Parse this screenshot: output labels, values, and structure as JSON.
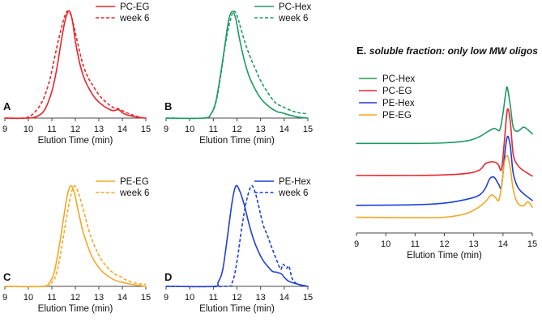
{
  "chart_data": [
    {
      "type": "line",
      "panel": "A",
      "xlabel": "Elution Time (min)",
      "ylabel": "",
      "xlim": [
        9,
        15
      ],
      "ylim": [
        0,
        1
      ],
      "xticks": [
        9,
        10,
        11,
        12,
        13,
        14,
        15
      ],
      "legend_position": "top-right",
      "grid": false,
      "series": [
        {
          "name": "PC-EG",
          "color": "#e8262b",
          "dash": "solid",
          "x": [
            9.0,
            10.0,
            10.4,
            10.7,
            11.0,
            11.2,
            11.4,
            11.55,
            11.7,
            11.8,
            11.9,
            12.0,
            12.2,
            12.4,
            12.6,
            12.8,
            13.0,
            13.3,
            13.6,
            13.8,
            13.9,
            14.0,
            14.2,
            14.6,
            15.0
          ],
          "y": [
            0.0,
            0.0,
            0.02,
            0.08,
            0.25,
            0.45,
            0.72,
            0.9,
            1.0,
            0.98,
            0.88,
            0.72,
            0.5,
            0.36,
            0.27,
            0.2,
            0.15,
            0.1,
            0.07,
            0.08,
            0.07,
            0.05,
            0.03,
            0.01,
            0.0
          ]
        },
        {
          "name": "week 6",
          "color": "#e8262b",
          "dash": "dashed",
          "x": [
            9.0,
            9.8,
            10.2,
            10.6,
            10.9,
            11.1,
            11.3,
            11.5,
            11.65,
            11.8,
            11.95,
            12.1,
            12.3,
            12.5,
            12.7,
            13.0,
            13.3,
            13.6,
            13.8,
            14.0,
            14.3,
            14.7,
            15.0
          ],
          "y": [
            0.0,
            0.0,
            0.04,
            0.16,
            0.35,
            0.55,
            0.75,
            0.92,
            1.0,
            0.97,
            0.85,
            0.7,
            0.52,
            0.4,
            0.32,
            0.22,
            0.15,
            0.1,
            0.09,
            0.07,
            0.04,
            0.01,
            0.0
          ]
        }
      ]
    },
    {
      "type": "line",
      "panel": "B",
      "xlabel": "Elution Time (min)",
      "ylabel": "",
      "xlim": [
        9,
        15
      ],
      "ylim": [
        0,
        1
      ],
      "xticks": [
        9,
        10,
        11,
        12,
        13,
        14,
        15
      ],
      "legend_position": "top-right",
      "grid": false,
      "series": [
        {
          "name": "PC-Hex",
          "color": "#1d9a62",
          "dash": "solid",
          "x": [
            9.0,
            10.6,
            10.9,
            11.1,
            11.3,
            11.5,
            11.65,
            11.8,
            11.95,
            12.1,
            12.3,
            12.5,
            12.7,
            12.9,
            13.1,
            13.4,
            13.7,
            13.9,
            14.2,
            14.6,
            15.0
          ],
          "y": [
            0.0,
            0.0,
            0.04,
            0.15,
            0.4,
            0.7,
            0.92,
            1.0,
            0.93,
            0.75,
            0.55,
            0.4,
            0.3,
            0.22,
            0.16,
            0.1,
            0.06,
            0.05,
            0.03,
            0.01,
            0.0
          ]
        },
        {
          "name": "week 6",
          "color": "#1d9a62",
          "dash": "dashed",
          "x": [
            9.0,
            10.6,
            10.9,
            11.1,
            11.3,
            11.5,
            11.7,
            11.85,
            12.0,
            12.15,
            12.35,
            12.6,
            12.8,
            13.0,
            13.3,
            13.6,
            13.8,
            14.0,
            14.3,
            14.6,
            15.0
          ],
          "y": [
            0.0,
            0.0,
            0.04,
            0.14,
            0.38,
            0.68,
            0.9,
            1.0,
            0.96,
            0.85,
            0.7,
            0.55,
            0.45,
            0.35,
            0.24,
            0.15,
            0.12,
            0.1,
            0.07,
            0.05,
            0.04
          ]
        }
      ]
    },
    {
      "type": "line",
      "panel": "C",
      "xlabel": "Elution Time (min)",
      "ylabel": "",
      "xlim": [
        9,
        15
      ],
      "ylim": [
        0,
        1
      ],
      "xticks": [
        9,
        10,
        11,
        12,
        13,
        14,
        15
      ],
      "legend_position": "top-right",
      "grid": false,
      "series": [
        {
          "name": "PE-EG",
          "color": "#f5a623",
          "dash": "solid",
          "x": [
            9.0,
            10.6,
            10.9,
            11.1,
            11.3,
            11.5,
            11.65,
            11.8,
            11.95,
            12.1,
            12.3,
            12.5,
            12.7,
            12.9,
            13.1,
            13.4,
            13.7,
            14.0,
            14.4,
            15.0
          ],
          "y": [
            0.0,
            0.0,
            0.04,
            0.14,
            0.38,
            0.68,
            0.9,
            1.0,
            0.94,
            0.78,
            0.57,
            0.42,
            0.3,
            0.22,
            0.16,
            0.1,
            0.06,
            0.04,
            0.02,
            0.0
          ]
        },
        {
          "name": "week 6",
          "color": "#f5a623",
          "dash": "dashed",
          "x": [
            9.0,
            10.7,
            11.0,
            11.2,
            11.4,
            11.6,
            11.8,
            11.95,
            12.1,
            12.3,
            12.5,
            12.7,
            12.9,
            13.1,
            13.4,
            13.7,
            13.9,
            14.2,
            14.6,
            15.0
          ],
          "y": [
            0.0,
            0.0,
            0.04,
            0.13,
            0.36,
            0.65,
            0.9,
            1.0,
            0.95,
            0.8,
            0.62,
            0.47,
            0.36,
            0.27,
            0.18,
            0.12,
            0.1,
            0.06,
            0.03,
            0.02
          ]
        }
      ]
    },
    {
      "type": "line",
      "panel": "D",
      "xlabel": "Elution Time (min)",
      "ylabel": "",
      "xlim": [
        9,
        15
      ],
      "ylim": [
        0,
        1
      ],
      "xticks": [
        9,
        10,
        11,
        12,
        13,
        14,
        15
      ],
      "legend_position": "top-right",
      "grid": false,
      "series": [
        {
          "name": "PE-Hex",
          "color": "#1f3fd6",
          "dash": "solid",
          "x": [
            9.0,
            11.0,
            11.2,
            11.4,
            11.6,
            11.8,
            11.95,
            12.1,
            12.3,
            12.5,
            12.7,
            12.9,
            13.1,
            13.3,
            13.5,
            13.7,
            13.9,
            14.0,
            14.2,
            14.6,
            15.0
          ],
          "y": [
            0.0,
            0.0,
            0.04,
            0.17,
            0.5,
            0.85,
            1.0,
            0.96,
            0.82,
            0.63,
            0.47,
            0.35,
            0.26,
            0.2,
            0.15,
            0.14,
            0.12,
            0.09,
            0.05,
            0.02,
            0.0
          ]
        },
        {
          "name": "week 6",
          "color": "#1f3fd6",
          "dash": "dashed",
          "x": [
            9.0,
            11.5,
            11.8,
            12.0,
            12.2,
            12.4,
            12.6,
            12.75,
            12.9,
            13.1,
            13.3,
            13.5,
            13.7,
            13.85,
            13.95,
            14.1,
            14.2,
            14.35,
            14.6,
            15.0
          ],
          "y": [
            0.0,
            0.0,
            0.04,
            0.25,
            0.58,
            0.85,
            1.0,
            0.95,
            0.82,
            0.62,
            0.5,
            0.37,
            0.25,
            0.17,
            0.22,
            0.18,
            0.2,
            0.07,
            0.02,
            0.0
          ]
        }
      ]
    },
    {
      "type": "line",
      "panel": "E",
      "title": "soluble fraction: only low MW oligos",
      "xlabel": "Elution Time (min)",
      "ylabel": "",
      "xlim": [
        9,
        15
      ],
      "ylim": [
        -0.2,
        6
      ],
      "xticks": [
        9,
        10,
        11,
        12,
        13,
        14,
        15
      ],
      "legend_position": "top-left",
      "grid": false,
      "series": [
        {
          "name": "PC-Hex",
          "color": "#1d9a62",
          "dash": "solid",
          "x": [
            9.0,
            11.0,
            12.0,
            12.8,
            13.2,
            13.5,
            13.7,
            13.8,
            13.9,
            14.0,
            14.1,
            14.15,
            14.25,
            14.35,
            14.5,
            14.7,
            14.85,
            15.0
          ],
          "y": [
            3.1,
            3.1,
            3.12,
            3.2,
            3.35,
            3.55,
            3.65,
            3.6,
            3.62,
            4.2,
            5.0,
            5.15,
            4.5,
            3.7,
            3.55,
            3.7,
            3.6,
            3.45
          ]
        },
        {
          "name": "PC-EG",
          "color": "#e8262b",
          "dash": "solid",
          "x": [
            9.0,
            11.0,
            12.0,
            12.8,
            13.2,
            13.4,
            13.6,
            13.75,
            13.85,
            13.95,
            14.05,
            14.15,
            14.25,
            14.35,
            14.5,
            14.7,
            15.0
          ],
          "y": [
            1.92,
            1.92,
            1.94,
            2.0,
            2.12,
            2.35,
            2.42,
            2.4,
            2.3,
            2.15,
            3.2,
            4.35,
            3.9,
            2.7,
            2.3,
            2.1,
            1.9
          ]
        },
        {
          "name": "PE-Hex",
          "color": "#1f3fd6",
          "dash": "solid",
          "x": [
            9.0,
            11.0,
            12.0,
            12.8,
            13.2,
            13.4,
            13.55,
            13.7,
            13.85,
            13.95,
            14.05,
            14.15,
            14.25,
            14.35,
            14.5,
            14.7,
            15.0
          ],
          "y": [
            0.82,
            0.84,
            0.9,
            1.05,
            1.2,
            1.45,
            1.8,
            1.85,
            1.6,
            1.5,
            2.6,
            3.35,
            3.0,
            2.0,
            1.5,
            1.25,
            1.0
          ]
        },
        {
          "name": "PE-EG",
          "color": "#f5a623",
          "dash": "solid",
          "x": [
            9.0,
            11.0,
            12.0,
            12.7,
            13.1,
            13.4,
            13.6,
            13.75,
            13.85,
            13.95,
            14.05,
            14.15,
            14.25,
            14.35,
            14.5,
            14.7,
            14.85,
            15.0
          ],
          "y": [
            0.38,
            0.36,
            0.38,
            0.5,
            0.7,
            0.95,
            1.2,
            1.1,
            1.0,
            1.5,
            2.4,
            2.65,
            2.2,
            1.4,
            0.9,
            0.8,
            0.95,
            0.75
          ]
        }
      ]
    }
  ]
}
